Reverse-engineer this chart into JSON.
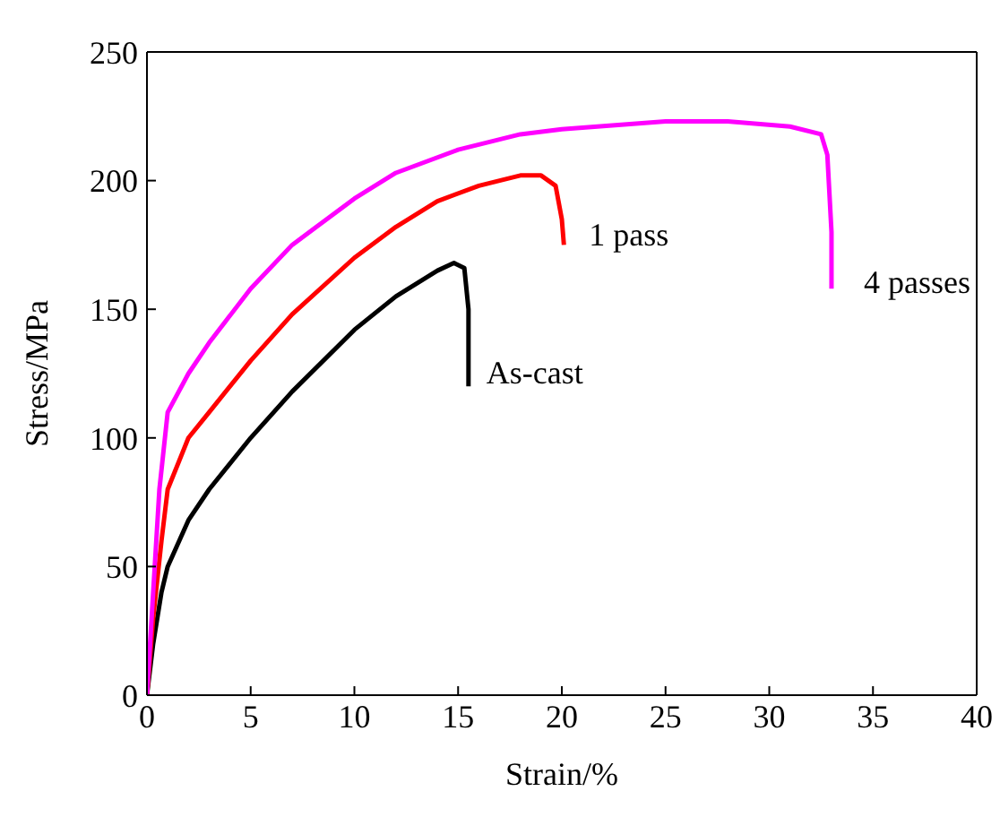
{
  "chart_data": {
    "type": "line",
    "xlabel": "Strain/%",
    "ylabel": "Stress/MPa",
    "xlim": [
      0,
      40
    ],
    "ylim": [
      0,
      250
    ],
    "xticks": [
      0,
      5,
      10,
      15,
      20,
      25,
      30,
      35,
      40
    ],
    "yticks": [
      0,
      50,
      100,
      150,
      200,
      250
    ],
    "marker": "none",
    "line_style": "solid",
    "series": [
      {
        "color": "#000000",
        "x": [
          0,
          0.3,
          0.7,
          1,
          2,
          3,
          5,
          7,
          10,
          12,
          14,
          14.8,
          15.3,
          15.5,
          15.5
        ],
        "values": [
          0,
          20,
          40,
          50,
          68,
          80,
          100,
          118,
          142,
          155,
          165,
          168,
          166,
          150,
          120
        ]
      },
      {
        "color": "#ff0000",
        "x": [
          0,
          0.3,
          0.7,
          1,
          2,
          3,
          5,
          7,
          10,
          12,
          14,
          16,
          18,
          19,
          19.7,
          20,
          20.1
        ],
        "values": [
          0,
          30,
          60,
          80,
          100,
          110,
          130,
          148,
          170,
          182,
          192,
          198,
          202,
          202,
          198,
          185,
          175
        ]
      },
      {
        "color": "#ff00ff",
        "x": [
          0,
          0.3,
          0.6,
          1,
          2,
          3,
          5,
          7,
          10,
          12,
          15,
          18,
          20,
          25,
          28,
          31,
          32.5,
          32.8,
          33,
          33
        ],
        "values": [
          0,
          40,
          80,
          110,
          125,
          137,
          158,
          175,
          193,
          203,
          212,
          218,
          220,
          223,
          223,
          221,
          218,
          210,
          180,
          158
        ]
      }
    ],
    "annotations": [
      "As-cast",
      "1 pass",
      "4 passes"
    ]
  }
}
